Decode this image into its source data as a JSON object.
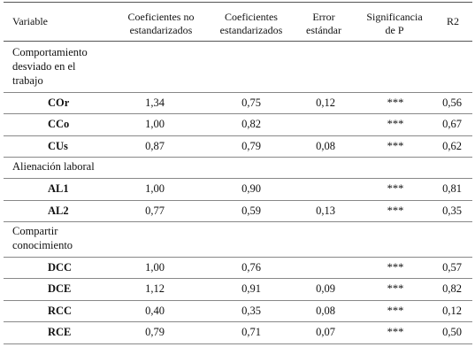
{
  "headers": {
    "variable": "Variable",
    "coef_no_std": [
      "Coeficientes no",
      "estandarizados"
    ],
    "coef_std": [
      "Coeficientes",
      "estandarizados"
    ],
    "error": [
      "Error",
      "estándar"
    ],
    "sig": [
      "Significancia",
      "de P"
    ],
    "r2": "R2"
  },
  "groups": [
    {
      "title_lines": [
        "Comportamiento",
        "desviado en el",
        "trabajo"
      ],
      "rows": [
        {
          "var": "COr",
          "coef_no_std": "1,34",
          "coef_std": "0,75",
          "error": "0,12",
          "sig": "***",
          "r2": "0,56"
        },
        {
          "var": "CCo",
          "coef_no_std": "1,00",
          "coef_std": "0,82",
          "error": "",
          "sig": "***",
          "r2": "0,67"
        },
        {
          "var": "CUs",
          "coef_no_std": "0,87",
          "coef_std": "0,79",
          "error": "0,08",
          "sig": "***",
          "r2": "0,62"
        }
      ]
    },
    {
      "title_lines": [
        "Alienación laboral"
      ],
      "rows": [
        {
          "var": "AL1",
          "coef_no_std": "1,00",
          "coef_std": "0,90",
          "error": "",
          "sig": "***",
          "r2": "0,81"
        },
        {
          "var": "AL2",
          "coef_no_std": "0,77",
          "coef_std": "0,59",
          "error": "0,13",
          "sig": "***",
          "r2": "0,35"
        }
      ]
    },
    {
      "title_lines": [
        "Compartir",
        "conocimiento"
      ],
      "rows": [
        {
          "var": "DCC",
          "coef_no_std": "1,00",
          "coef_std": "0,76",
          "error": "",
          "sig": "***",
          "r2": "0,57"
        },
        {
          "var": "DCE",
          "coef_no_std": "1,12",
          "coef_std": "0,91",
          "error": "0,09",
          "sig": "***",
          "r2": "0,82"
        },
        {
          "var": "RCC",
          "coef_no_std": "0,40",
          "coef_std": "0,35",
          "error": "0,08",
          "sig": "***",
          "r2": "0,12"
        },
        {
          "var": "RCE",
          "coef_no_std": "0,79",
          "coef_std": "0,71",
          "error": "0,07",
          "sig": "***",
          "r2": "0,50"
        }
      ]
    }
  ]
}
